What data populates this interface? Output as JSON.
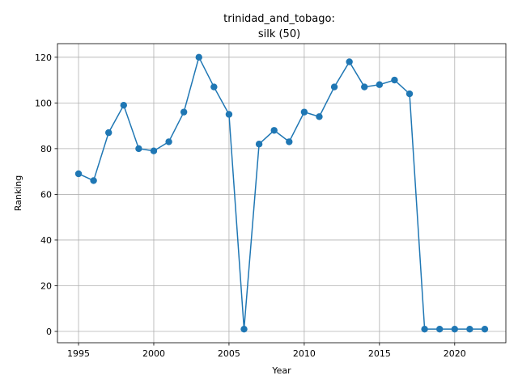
{
  "chart_data": {
    "type": "line",
    "title_line1": "trinidad_and_tobago:",
    "title_line2": "silk (50)",
    "xlabel": "Year",
    "ylabel": "Ranking",
    "xlim": [
      1993.6,
      2023.4
    ],
    "ylim": [
      -4.95,
      125.95
    ],
    "xticks": [
      1995,
      2000,
      2005,
      2010,
      2015,
      2020
    ],
    "yticks": [
      0,
      20,
      40,
      60,
      80,
      100,
      120
    ],
    "grid": true,
    "series_color": "#1f77b4",
    "x": [
      1995,
      1996,
      1997,
      1998,
      1999,
      2000,
      2001,
      2002,
      2003,
      2004,
      2005,
      2006,
      2007,
      2008,
      2009,
      2010,
      2011,
      2012,
      2013,
      2014,
      2015,
      2016,
      2017,
      2018,
      2019,
      2020,
      2021,
      2022
    ],
    "y": [
      69,
      66,
      87,
      99,
      80,
      79,
      83,
      96,
      120,
      107,
      95,
      1,
      82,
      88,
      83,
      96,
      94,
      107,
      118,
      107,
      108,
      110,
      104,
      1,
      1,
      1,
      1,
      1
    ]
  }
}
